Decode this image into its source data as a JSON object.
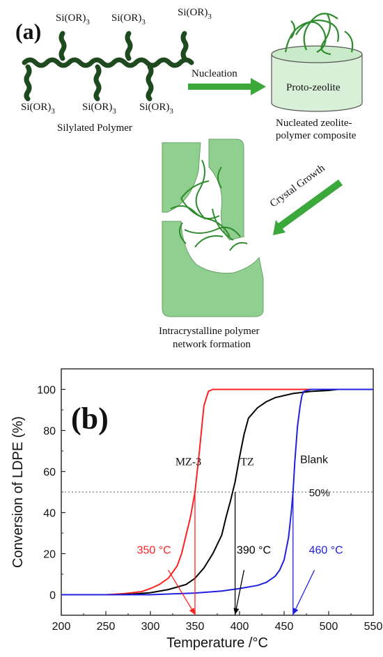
{
  "panel_a": {
    "label": "(a)",
    "si_label": "Si(OR)",
    "si_sub": "3",
    "silylated_polymer": "Silylated Polymer",
    "nucleation": "Nucleation",
    "proto_zeolite": "Proto-zeolite",
    "nucleated_line1": "Nucleated zeolite-",
    "nucleated_line2": "polymer composite",
    "crystal_growth": "Crystal Growth",
    "intra_line1": "Intracrystalline polymer",
    "intra_line2": "network formation",
    "colors": {
      "polymer": "#1f4a1f",
      "arrow": "#3aa83a",
      "crystal": "#8fcf8f",
      "network": "#2e8b2e"
    }
  },
  "chart_data": {
    "type": "line",
    "panel_label": "(b)",
    "xlabel": "Temperature /°C",
    "ylabel": "Conversion of LDPE (%)",
    "xlim": [
      200,
      550
    ],
    "ylim": [
      -10,
      110
    ],
    "xticks": [
      200,
      250,
      300,
      350,
      400,
      450,
      500,
      550
    ],
    "yticks": [
      0,
      20,
      40,
      60,
      80,
      100
    ],
    "grid": false,
    "reference_line": {
      "y": 50,
      "label": "50%"
    },
    "series": [
      {
        "name": "MZ-3",
        "color": "#ff2020",
        "x": [
          200,
          250,
          270,
          290,
          300,
          310,
          320,
          330,
          335,
          340,
          345,
          350,
          355,
          360,
          365,
          370,
          380,
          550
        ],
        "y": [
          0,
          0,
          0.5,
          1.5,
          3,
          5,
          8,
          14,
          20,
          29,
          38,
          50,
          70,
          92,
          99,
          100,
          100,
          100
        ]
      },
      {
        "name": "TZ",
        "color": "#000000",
        "x": [
          200,
          260,
          280,
          300,
          320,
          340,
          350,
          360,
          370,
          380,
          385,
          390,
          395,
          400,
          405,
          410,
          420,
          430,
          440,
          460,
          480,
          500,
          510,
          550
        ],
        "y": [
          0,
          0,
          0.3,
          1,
          2.5,
          5,
          8,
          13,
          20,
          29,
          38,
          46,
          55,
          67,
          78,
          86,
          91,
          94,
          96,
          98,
          99,
          99.5,
          100,
          100
        ]
      },
      {
        "name": "Blank",
        "color": "#2020e0",
        "x": [
          200,
          300,
          350,
          380,
          400,
          420,
          430,
          440,
          445,
          450,
          455,
          458,
          460,
          462,
          465,
          468,
          470,
          472,
          480,
          500,
          550
        ],
        "y": [
          0,
          0,
          0.8,
          1.8,
          3,
          4.5,
          6,
          9,
          12,
          17,
          28,
          40,
          50,
          65,
          82,
          92,
          97,
          99,
          100,
          100,
          100
        ]
      }
    ],
    "annotations": [
      {
        "text": "350 °C",
        "color": "#ff2020",
        "x": 350
      },
      {
        "text": "390 °C",
        "color": "#000000",
        "x": 395
      },
      {
        "text": "460 °C",
        "color": "#2020e0",
        "x": 460
      }
    ]
  }
}
